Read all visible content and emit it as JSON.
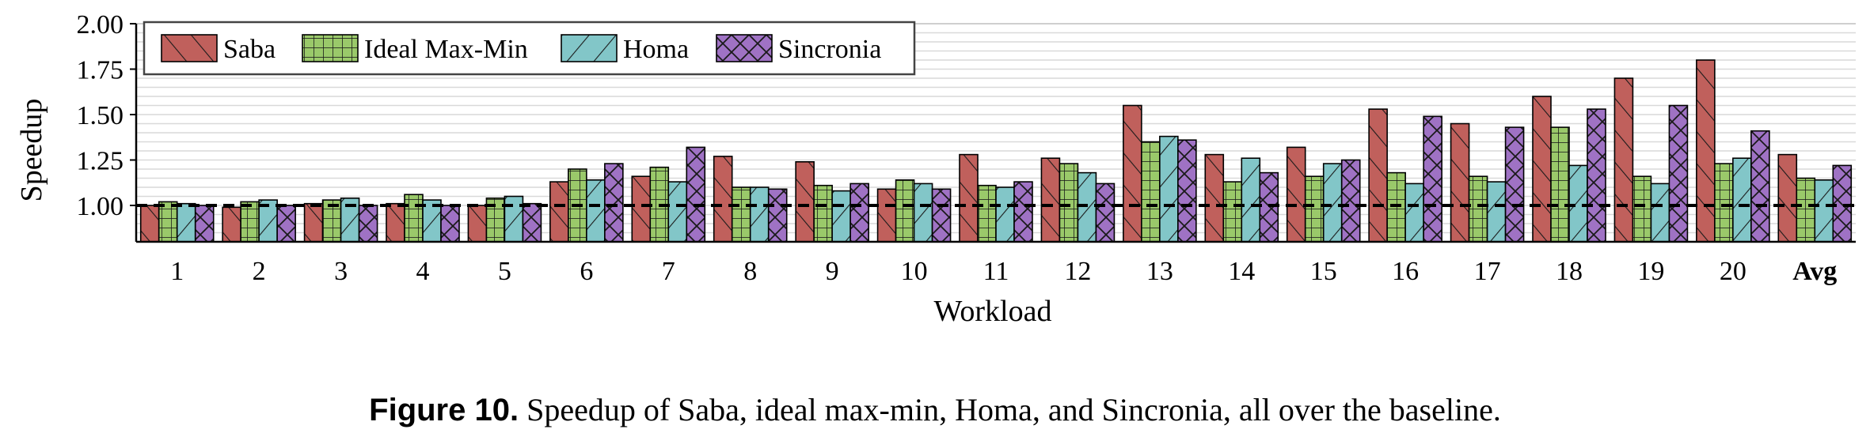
{
  "chart_data": {
    "type": "bar",
    "title": "",
    "xlabel": "Workload",
    "ylabel": "Speedup",
    "ylim": [
      0.8,
      2.0
    ],
    "yticks": [
      "1.00",
      "1.25",
      "1.50",
      "1.75",
      "2.00"
    ],
    "yticks_values": [
      1.0,
      1.25,
      1.5,
      1.75,
      2.0
    ],
    "grid": true,
    "legend_position": "top-left",
    "baseline": 1.0,
    "categories": [
      "1",
      "2",
      "3",
      "4",
      "5",
      "6",
      "7",
      "8",
      "9",
      "10",
      "11",
      "12",
      "13",
      "14",
      "15",
      "16",
      "17",
      "18",
      "19",
      "20",
      "Avg"
    ],
    "series": [
      {
        "name": "Saba",
        "color": "#c0605c",
        "pattern": "diag",
        "values": [
          1.0,
          0.99,
          1.01,
          1.01,
          1.0,
          1.13,
          1.16,
          1.27,
          1.24,
          1.09,
          1.28,
          1.26,
          1.55,
          1.28,
          1.32,
          1.53,
          1.45,
          1.6,
          1.7,
          1.8,
          1.28
        ]
      },
      {
        "name": "Ideal Max-Min",
        "color": "#9ac96a",
        "pattern": "grid",
        "values": [
          1.02,
          1.02,
          1.03,
          1.06,
          1.04,
          1.2,
          1.21,
          1.1,
          1.11,
          1.14,
          1.11,
          1.23,
          1.35,
          1.13,
          1.16,
          1.18,
          1.16,
          1.43,
          1.16,
          1.23,
          1.15
        ]
      },
      {
        "name": "Homa",
        "color": "#82c6c8",
        "pattern": "backdiag",
        "values": [
          1.01,
          1.03,
          1.04,
          1.03,
          1.05,
          1.14,
          1.13,
          1.1,
          1.08,
          1.12,
          1.1,
          1.18,
          1.38,
          1.26,
          1.23,
          1.12,
          1.13,
          1.22,
          1.12,
          1.26,
          1.14
        ]
      },
      {
        "name": "Sincronia",
        "color": "#9f72c4",
        "pattern": "cross",
        "values": [
          1.0,
          1.0,
          1.0,
          1.0,
          1.01,
          1.23,
          1.32,
          1.09,
          1.12,
          1.09,
          1.13,
          1.12,
          1.36,
          1.18,
          1.25,
          1.49,
          1.43,
          1.53,
          1.55,
          1.41,
          1.22
        ]
      }
    ]
  },
  "caption": {
    "label": "Figure 10.",
    "text": " Speedup of Saba, ideal max-min, Homa, and Sincronia, all over the baseline."
  }
}
